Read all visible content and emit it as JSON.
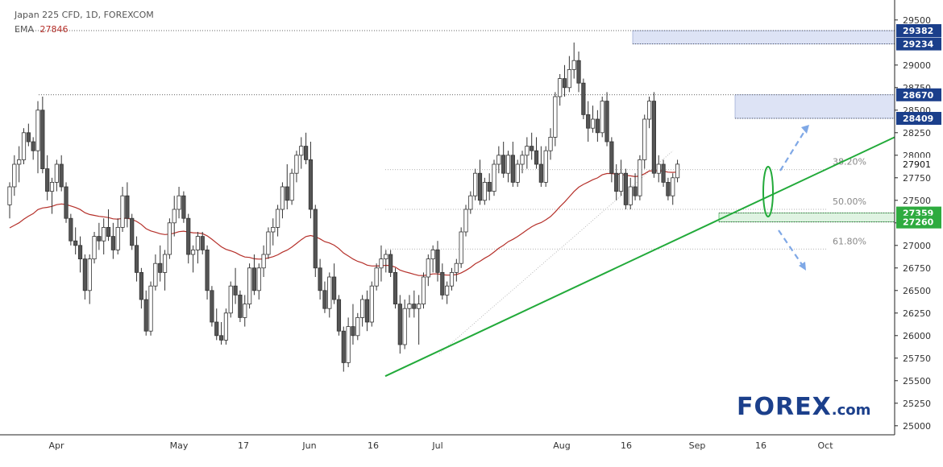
{
  "header": {
    "symbol": "Japan 225 CFD, 1D, FOREXCOM",
    "ema_label": "EMA",
    "ema_value": "27846"
  },
  "logo": {
    "brand": "FOREX",
    "suffix": ".com"
  },
  "colors": {
    "candle_up": "#ffffff",
    "candle_down": "#555555",
    "ema": "#b5302a",
    "trendline": "#22aa3a",
    "zone_blue": "#dde3f5",
    "zone_green": "#dff3e2",
    "price_label_bg": "#1b3f8b",
    "arrow": "#7fa8e6",
    "logo_blue": "#1b3f8b",
    "logo_green": "#2eab3f"
  },
  "chart_data": {
    "type": "candlestick",
    "title": "Japan 225 CFD, 1D, FOREXCOM",
    "ylim": [
      24900,
      29650
    ],
    "y_ticks": [
      25000,
      25250,
      25500,
      25750,
      26000,
      26250,
      26500,
      26750,
      27000,
      27250,
      27500,
      27750,
      28000,
      28250,
      28500,
      28750,
      29000,
      29500
    ],
    "x_tick_labels": [
      "Apr",
      "May",
      "17",
      "Jun",
      "16",
      "Jul",
      "Aug",
      "16",
      "Sep",
      "16",
      "Oct"
    ],
    "fib_levels": [
      {
        "label": "38.20%",
        "value": 27840
      },
      {
        "label": "50.00%",
        "value": 27400
      },
      {
        "label": "61.80%",
        "value": 26960
      }
    ],
    "zones": [
      {
        "name": "resistance-29382-29234",
        "top": 29382,
        "bottom": 29234,
        "labels": [
          "29382",
          "29234"
        ]
      },
      {
        "name": "resistance-28670-28409",
        "top": 28670,
        "bottom": 28409,
        "labels": [
          "28670",
          "28409"
        ]
      },
      {
        "name": "support-27359-27260",
        "top": 27359,
        "bottom": 27260,
        "labels": [
          "27359",
          "27260"
        ]
      }
    ],
    "current_price": "27901",
    "ema_period_value": 27846,
    "ohlc": [
      [
        27450,
        27700,
        27300,
        27650
      ],
      [
        27650,
        28000,
        27550,
        27900
      ],
      [
        27900,
        28100,
        27700,
        27950
      ],
      [
        27950,
        28300,
        27900,
        28250
      ],
      [
        28250,
        28350,
        28100,
        28150
      ],
      [
        28150,
        28200,
        27950,
        28050
      ],
      [
        28050,
        28600,
        27800,
        28500
      ],
      [
        28500,
        28650,
        27800,
        27850
      ],
      [
        27850,
        28000,
        27500,
        27600
      ],
      [
        27600,
        27750,
        27350,
        27700
      ],
      [
        27700,
        27950,
        27600,
        27900
      ],
      [
        27900,
        28000,
        27600,
        27650
      ],
      [
        27650,
        27700,
        27250,
        27300
      ],
      [
        27300,
        27350,
        27000,
        27050
      ],
      [
        27050,
        27200,
        26900,
        27000
      ],
      [
        27000,
        27100,
        26700,
        26850
      ],
      [
        26850,
        26900,
        26400,
        26500
      ],
      [
        26500,
        26900,
        26350,
        26850
      ],
      [
        26850,
        27150,
        26800,
        27100
      ],
      [
        27100,
        27250,
        26950,
        27050
      ],
      [
        27050,
        27300,
        26900,
        27200
      ],
      [
        27200,
        27400,
        27050,
        27100
      ],
      [
        27100,
        27250,
        26850,
        26950
      ],
      [
        26950,
        27300,
        26900,
        27200
      ],
      [
        27200,
        27650,
        27150,
        27550
      ],
      [
        27550,
        27700,
        27200,
        27300
      ],
      [
        27300,
        27350,
        26950,
        27000
      ],
      [
        27000,
        27100,
        26600,
        26700
      ],
      [
        26700,
        26750,
        26300,
        26400
      ],
      [
        26400,
        26500,
        26000,
        26050
      ],
      [
        26050,
        26600,
        26000,
        26550
      ],
      [
        26550,
        26900,
        26500,
        26800
      ],
      [
        26800,
        27000,
        26600,
        26700
      ],
      [
        26700,
        26950,
        26500,
        26900
      ],
      [
        26900,
        27300,
        26850,
        27250
      ],
      [
        27250,
        27550,
        27100,
        27400
      ],
      [
        27400,
        27650,
        27300,
        27550
      ],
      [
        27550,
        27600,
        27250,
        27300
      ],
      [
        27300,
        27350,
        26800,
        26900
      ],
      [
        26900,
        27000,
        26700,
        26950
      ],
      [
        26950,
        27150,
        26800,
        27100
      ],
      [
        27100,
        27150,
        26900,
        26950
      ],
      [
        26950,
        27000,
        26400,
        26500
      ],
      [
        26500,
        26550,
        26100,
        26150
      ],
      [
        26150,
        26300,
        25950,
        26000
      ],
      [
        26000,
        26150,
        25900,
        25950
      ],
      [
        25950,
        26300,
        25900,
        26250
      ],
      [
        26250,
        26600,
        26200,
        26550
      ],
      [
        26550,
        26750,
        26350,
        26450
      ],
      [
        26450,
        26500,
        26150,
        26200
      ],
      [
        26200,
        26450,
        26100,
        26350
      ],
      [
        26350,
        26800,
        26300,
        26750
      ],
      [
        26750,
        26900,
        26450,
        26500
      ],
      [
        26500,
        26800,
        26400,
        26750
      ],
      [
        26750,
        27000,
        26650,
        26900
      ],
      [
        26900,
        27200,
        26850,
        27150
      ],
      [
        27150,
        27300,
        27000,
        27200
      ],
      [
        27200,
        27450,
        27100,
        27400
      ],
      [
        27400,
        27700,
        27300,
        27650
      ],
      [
        27650,
        27900,
        27400,
        27500
      ],
      [
        27500,
        27850,
        27450,
        27800
      ],
      [
        27800,
        28050,
        27700,
        28000
      ],
      [
        28000,
        28200,
        27850,
        28100
      ],
      [
        28100,
        28250,
        27900,
        27950
      ],
      [
        27950,
        28150,
        27300,
        27400
      ],
      [
        27400,
        27450,
        26650,
        26750
      ],
      [
        26750,
        26850,
        26400,
        26500
      ],
      [
        26500,
        26600,
        26250,
        26300
      ],
      [
        26300,
        26700,
        26200,
        26650
      ],
      [
        26650,
        26800,
        26350,
        26400
      ],
      [
        26400,
        26450,
        26000,
        26050
      ],
      [
        26050,
        26100,
        25600,
        25700
      ],
      [
        25700,
        26200,
        25650,
        26100
      ],
      [
        26100,
        26350,
        25900,
        26000
      ],
      [
        26000,
        26250,
        25950,
        26200
      ],
      [
        26200,
        26450,
        26100,
        26400
      ],
      [
        26400,
        26500,
        26050,
        26150
      ],
      [
        26150,
        26600,
        26100,
        26550
      ],
      [
        26550,
        26800,
        26500,
        26750
      ],
      [
        26750,
        27000,
        26600,
        26850
      ],
      [
        26850,
        26950,
        26700,
        26900
      ],
      [
        26900,
        26950,
        26650,
        26700
      ],
      [
        26700,
        26750,
        26300,
        26350
      ],
      [
        26350,
        26450,
        25800,
        25900
      ],
      [
        25900,
        26400,
        25850,
        26300
      ],
      [
        26300,
        26450,
        26200,
        26350
      ],
      [
        26350,
        26500,
        26200,
        26300
      ],
      [
        26300,
        26450,
        25900,
        26350
      ],
      [
        26350,
        26700,
        26300,
        26650
      ],
      [
        26650,
        26900,
        26550,
        26850
      ],
      [
        26850,
        27000,
        26700,
        26950
      ],
      [
        26950,
        27050,
        26600,
        26700
      ],
      [
        26700,
        26800,
        26400,
        26450
      ],
      [
        26450,
        26600,
        26350,
        26550
      ],
      [
        26550,
        26750,
        26500,
        26700
      ],
      [
        26700,
        26850,
        26600,
        26800
      ],
      [
        26800,
        27200,
        26750,
        27150
      ],
      [
        27150,
        27450,
        27100,
        27400
      ],
      [
        27400,
        27600,
        27350,
        27550
      ],
      [
        27550,
        27850,
        27500,
        27800
      ],
      [
        27800,
        27950,
        27450,
        27500
      ],
      [
        27500,
        27750,
        27450,
        27700
      ],
      [
        27700,
        27800,
        27500,
        27600
      ],
      [
        27600,
        27950,
        27550,
        27900
      ],
      [
        27900,
        28100,
        27800,
        28000
      ],
      [
        28000,
        28150,
        27750,
        27800
      ],
      [
        27800,
        28050,
        27700,
        28000
      ],
      [
        28000,
        28150,
        27650,
        27700
      ],
      [
        27700,
        27950,
        27650,
        27900
      ],
      [
        27900,
        28050,
        27800,
        28000
      ],
      [
        28000,
        28200,
        27850,
        28100
      ],
      [
        28100,
        28250,
        27950,
        28050
      ],
      [
        28050,
        28200,
        27850,
        27900
      ],
      [
        27900,
        28100,
        27650,
        27700
      ],
      [
        27700,
        28100,
        27650,
        28050
      ],
      [
        28050,
        28300,
        27950,
        28200
      ],
      [
        28200,
        28700,
        28100,
        28650
      ],
      [
        28650,
        28900,
        28550,
        28850
      ],
      [
        28850,
        29000,
        28650,
        28750
      ],
      [
        28750,
        29100,
        28700,
        28950
      ],
      [
        28950,
        29250,
        28850,
        29050
      ],
      [
        29050,
        29150,
        28700,
        28800
      ],
      [
        28800,
        28850,
        28400,
        28450
      ],
      [
        28450,
        28600,
        28150,
        28300
      ],
      [
        28300,
        28550,
        28250,
        28400
      ],
      [
        28400,
        28500,
        28150,
        28250
      ],
      [
        28250,
        28650,
        28200,
        28600
      ],
      [
        28600,
        28700,
        28100,
        28150
      ],
      [
        28150,
        28200,
        27700,
        27800
      ],
      [
        27800,
        27900,
        27500,
        27600
      ],
      [
        27600,
        27950,
        27550,
        27800
      ],
      [
        27800,
        27850,
        27400,
        27450
      ],
      [
        27450,
        27750,
        27400,
        27650
      ],
      [
        27650,
        27800,
        27500,
        27550
      ],
      [
        27550,
        28000,
        27500,
        27950
      ],
      [
        27950,
        28450,
        27850,
        28400
      ],
      [
        28400,
        28650,
        28300,
        28600
      ],
      [
        28600,
        28700,
        27750,
        27800
      ],
      [
        27800,
        28000,
        27700,
        27900
      ],
      [
        27900,
        27950,
        27650,
        27700
      ],
      [
        27700,
        27750,
        27500,
        27550
      ],
      [
        27550,
        27800,
        27450,
        27750
      ],
      [
        27750,
        27950,
        27700,
        27901
      ]
    ]
  }
}
